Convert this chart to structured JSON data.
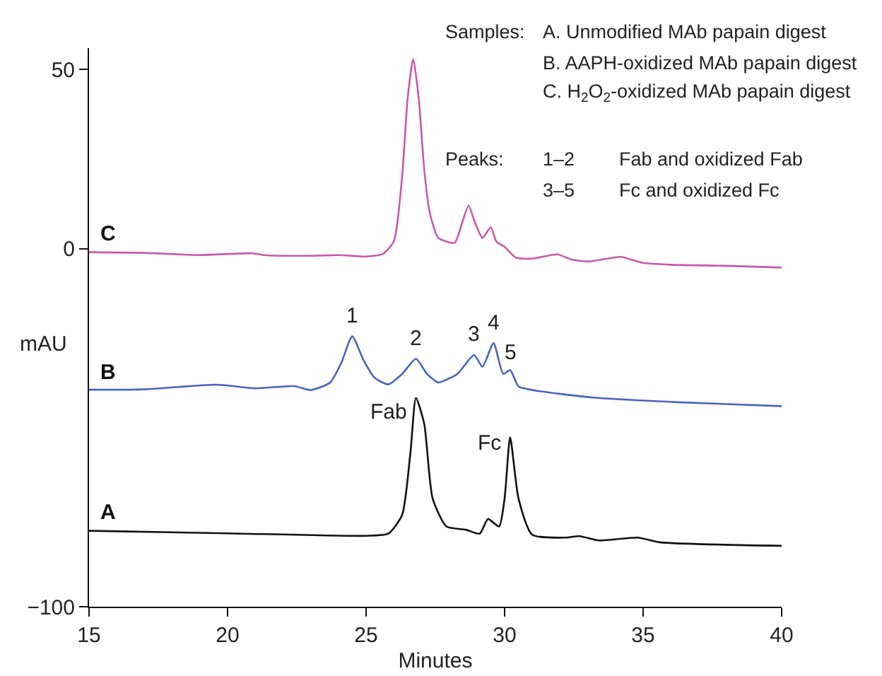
{
  "chart_data": {
    "type": "line",
    "xlabel": "Minutes",
    "ylabel": "mAU",
    "xlim": [
      15,
      40
    ],
    "xticks": [
      15,
      20,
      25,
      30,
      35,
      40
    ],
    "ylim": [
      -100,
      56
    ],
    "yticks": [
      50,
      0,
      {
        "value": -100,
        "label": "−100"
      }
    ],
    "grid": false,
    "legend": false,
    "tick_labels": "xy",
    "series": [
      {
        "name": "C",
        "color": "#c75aa8",
        "x": [
          15,
          17,
          19,
          20.9,
          21.3,
          23,
          24,
          25,
          25.6,
          26,
          26.3,
          26.5,
          26.7,
          26.9,
          27.1,
          27.3,
          27.6,
          27.9,
          28.2,
          28.5,
          28.7,
          28.9,
          29.2,
          29.5,
          29.7,
          30,
          30.4,
          31,
          31.9,
          32.4,
          33,
          33.7,
          34.2,
          35,
          36,
          38,
          40
        ],
        "values": [
          -1,
          -1.2,
          -1.8,
          -1.3,
          -1.8,
          -2,
          -1.8,
          -2.2,
          -1.5,
          2,
          20,
          42,
          53,
          42,
          22,
          10,
          3,
          2,
          1.6,
          8,
          12,
          8,
          3,
          6,
          2,
          0.5,
          -2.5,
          -2.8,
          -1.6,
          -3,
          -3.6,
          -2.8,
          -2.3,
          -4,
          -4.5,
          -4.8,
          -5.3
        ]
      },
      {
        "name": "B",
        "color": "#4a62bf",
        "x": [
          15,
          17,
          19.6,
          21,
          22.4,
          23,
          23.7,
          24.1,
          24.5,
          24.9,
          25.3,
          25.8,
          26.3,
          26.8,
          27.2,
          27.6,
          27.9,
          28.3,
          28.9,
          29.2,
          29.6,
          29.95,
          30.2,
          30.5,
          31,
          33.2,
          36.3,
          40
        ],
        "values": [
          -39.4,
          -39.3,
          -38,
          -39,
          -38.4,
          -39.5,
          -37.4,
          -32,
          -24.5,
          -31,
          -36,
          -37.9,
          -35,
          -30.8,
          -35,
          -37.4,
          -36.6,
          -35,
          -29.7,
          -33,
          -26.4,
          -35,
          -33.9,
          -38.5,
          -39.5,
          -41.6,
          -42.9,
          -44
        ]
      },
      {
        "name": "A",
        "color": "#111111",
        "x": [
          15,
          20,
          25,
          25.8,
          26.3,
          26.6,
          26.8,
          27.1,
          27.4,
          27.9,
          28.6,
          29.1,
          29.4,
          29.8,
          30,
          30.2,
          30.5,
          31,
          32.2,
          32.7,
          33.4,
          34.8,
          35.6,
          40
        ],
        "values": [
          -78.8,
          -79.5,
          -80.2,
          -79.6,
          -74.4,
          -57,
          -41.7,
          -49,
          -69.7,
          -77.6,
          -78.5,
          -79.6,
          -75.5,
          -77.6,
          -69.7,
          -52.7,
          -69.7,
          -79.9,
          -80.7,
          -80.3,
          -81.5,
          -80.7,
          -82,
          -83
        ]
      }
    ],
    "annotations": [
      "Samples:",
      "A. Unmodified MAb papain digest",
      "B. AAPH-oxidized MAb papain digest",
      "C. H$_{2}$O$_{2}$-oxidized MAb papain digest",
      "Peaks:",
      "1–2",
      "Fab and oxidized Fab",
      "3–5",
      "Fc and oxidized Fc",
      {
        "text": "1",
        "x": 24.5,
        "y": -24.5
      },
      {
        "text": "2",
        "x": 26.8,
        "y": -30.8
      },
      {
        "text": "3",
        "x": 28.9,
        "y": -29.7
      },
      {
        "text": "4",
        "x": 29.6,
        "y": -26.4
      },
      {
        "text": "5",
        "x": 30.2,
        "y": -33.9
      },
      {
        "text": "Fab",
        "x": 26.8,
        "y": -41.7
      },
      {
        "text": "Fc",
        "x": 30.2,
        "y": -52.7
      }
    ]
  }
}
